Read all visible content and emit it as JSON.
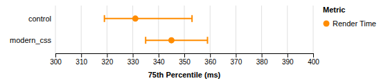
{
  "chart_data": {
    "type": "dot",
    "orientation": "horizontal",
    "categories": [
      "control",
      "modern_css"
    ],
    "series": [
      {
        "name": "Render Time",
        "color": "#FF8C00",
        "marker": "circle",
        "values": [
          331,
          345
        ],
        "ci_low": [
          319,
          335
        ],
        "ci_high": [
          353,
          359
        ]
      }
    ],
    "xlabel": "75th Percentile (ms)",
    "xlim": [
      300,
      400
    ],
    "xticks": [
      300,
      310,
      320,
      330,
      340,
      350,
      360,
      370,
      380,
      390,
      400
    ],
    "grid": "x",
    "legend": "right",
    "legend_title": "Metric"
  }
}
